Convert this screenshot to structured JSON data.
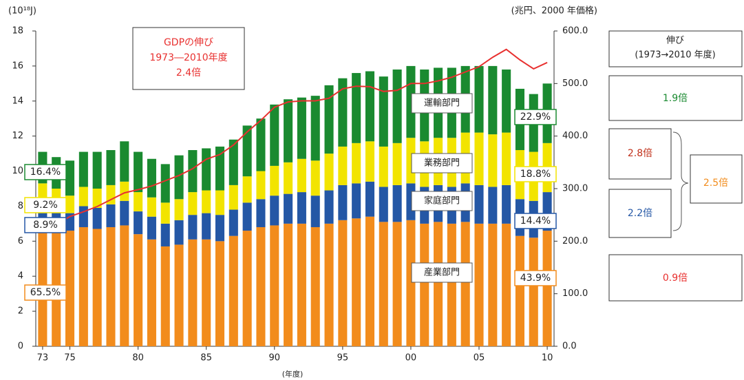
{
  "chart_data": {
    "type": "bar",
    "stacked": true,
    "y_label": "(10¹⁸J)",
    "y2_label": "(兆円、2000 年価格)",
    "x_label": "(年度)",
    "categories": [
      "73",
      null,
      "75",
      null,
      null,
      null,
      null,
      "80",
      null,
      null,
      null,
      null,
      "85",
      null,
      null,
      null,
      null,
      "90",
      null,
      null,
      null,
      null,
      "95",
      null,
      null,
      null,
      null,
      "00",
      null,
      null,
      null,
      null,
      "05",
      null,
      null,
      null,
      null,
      "10"
    ],
    "ylim": [
      0,
      18
    ],
    "yticks": [
      0,
      2,
      4,
      6,
      8,
      10,
      12,
      14,
      16,
      18
    ],
    "y2lim": [
      0,
      600
    ],
    "y2ticks": [
      {
        "value": 0,
        "label": "0.0"
      },
      {
        "value": 100,
        "label": "100.0"
      },
      {
        "value": 200,
        "label": "200.0"
      },
      {
        "value": 300,
        "label": "300.0"
      },
      {
        "value": 400,
        "label": "400.0"
      },
      {
        "value": 500,
        "label": "500.0"
      },
      {
        "value": 600,
        "label": "600.0"
      }
    ],
    "series": [
      {
        "name": "産業部門",
        "color": "#f28c1c",
        "values": [
          7.3,
          7.0,
          6.6,
          6.8,
          6.7,
          6.8,
          6.9,
          6.4,
          6.1,
          5.7,
          5.8,
          6.1,
          6.1,
          6.0,
          6.3,
          6.6,
          6.8,
          6.9,
          7.0,
          7.0,
          6.8,
          7.0,
          7.2,
          7.3,
          7.4,
          7.1,
          7.1,
          7.2,
          7.0,
          7.1,
          7.0,
          7.1,
          7.0,
          7.0,
          7.0,
          6.3,
          6.2,
          6.6
        ],
        "share_labels": [
          "65.5%",
          "43.9%"
        ]
      },
      {
        "name": "家庭部門",
        "color": "#2457a5",
        "values": [
          1.0,
          1.0,
          1.0,
          1.2,
          1.2,
          1.3,
          1.4,
          1.3,
          1.3,
          1.3,
          1.4,
          1.4,
          1.5,
          1.5,
          1.5,
          1.6,
          1.6,
          1.7,
          1.7,
          1.8,
          1.8,
          1.9,
          2.0,
          2.0,
          2.0,
          2.0,
          2.1,
          2.1,
          2.1,
          2.1,
          2.1,
          2.2,
          2.2,
          2.1,
          2.2,
          2.1,
          2.1,
          2.2
        ],
        "share_labels": [
          "8.9%",
          "14.4%"
        ]
      },
      {
        "name": "業務部門",
        "color": "#f2e400",
        "values": [
          1.0,
          1.0,
          1.0,
          1.1,
          1.1,
          1.1,
          1.1,
          1.1,
          1.1,
          1.2,
          1.2,
          1.3,
          1.3,
          1.4,
          1.4,
          1.5,
          1.6,
          1.7,
          1.8,
          1.9,
          2.0,
          2.1,
          2.2,
          2.3,
          2.3,
          2.3,
          2.4,
          2.6,
          2.6,
          2.7,
          2.8,
          2.9,
          3.0,
          3.0,
          3.0,
          2.8,
          2.8,
          2.8
        ],
        "share_labels": [
          "9.2%",
          "18.8%"
        ]
      },
      {
        "name": "運輸部門",
        "color": "#1a8a30",
        "values": [
          1.8,
          1.8,
          2.0,
          2.0,
          2.1,
          2.0,
          2.3,
          2.3,
          2.2,
          2.2,
          2.5,
          2.4,
          2.4,
          2.5,
          2.6,
          2.9,
          3.0,
          3.5,
          3.6,
          3.5,
          3.7,
          3.9,
          3.9,
          4.0,
          4.0,
          4.0,
          4.2,
          4.1,
          4.1,
          4.0,
          4.0,
          3.8,
          3.8,
          3.9,
          3.6,
          3.5,
          3.3,
          3.4
        ],
        "share_labels": [
          "16.4%",
          "22.9%"
        ]
      },
      {
        "type": "line",
        "axis": "y2",
        "color": "#e8302f",
        "values": [
          233,
          231,
          247,
          256,
          266,
          279,
          292,
          298,
          305,
          315,
          325,
          338,
          356,
          365,
          383,
          408,
          430,
          455,
          465,
          467,
          467,
          472,
          490,
          495,
          494,
          485,
          487,
          500,
          500,
          505,
          512,
          522,
          532,
          550,
          565,
          545,
          528,
          540
        ]
      }
    ],
    "gdp_note": [
      "GDPの伸び",
      "1973―2010年度",
      "2.4倍"
    ]
  },
  "growth_panel": {
    "header": [
      "伸び",
      "(1973→2010 年度)"
    ],
    "items": [
      {
        "text": "1.9倍",
        "color": "#1a8a30"
      },
      {
        "text": "2.8倍",
        "color": "#c0301a"
      },
      {
        "text": "2.2倍",
        "color": "#2457a5"
      },
      {
        "text": "2.5倍",
        "color": "#f28c1c"
      },
      {
        "text": "0.9倍",
        "color": "#e8302f"
      }
    ]
  }
}
